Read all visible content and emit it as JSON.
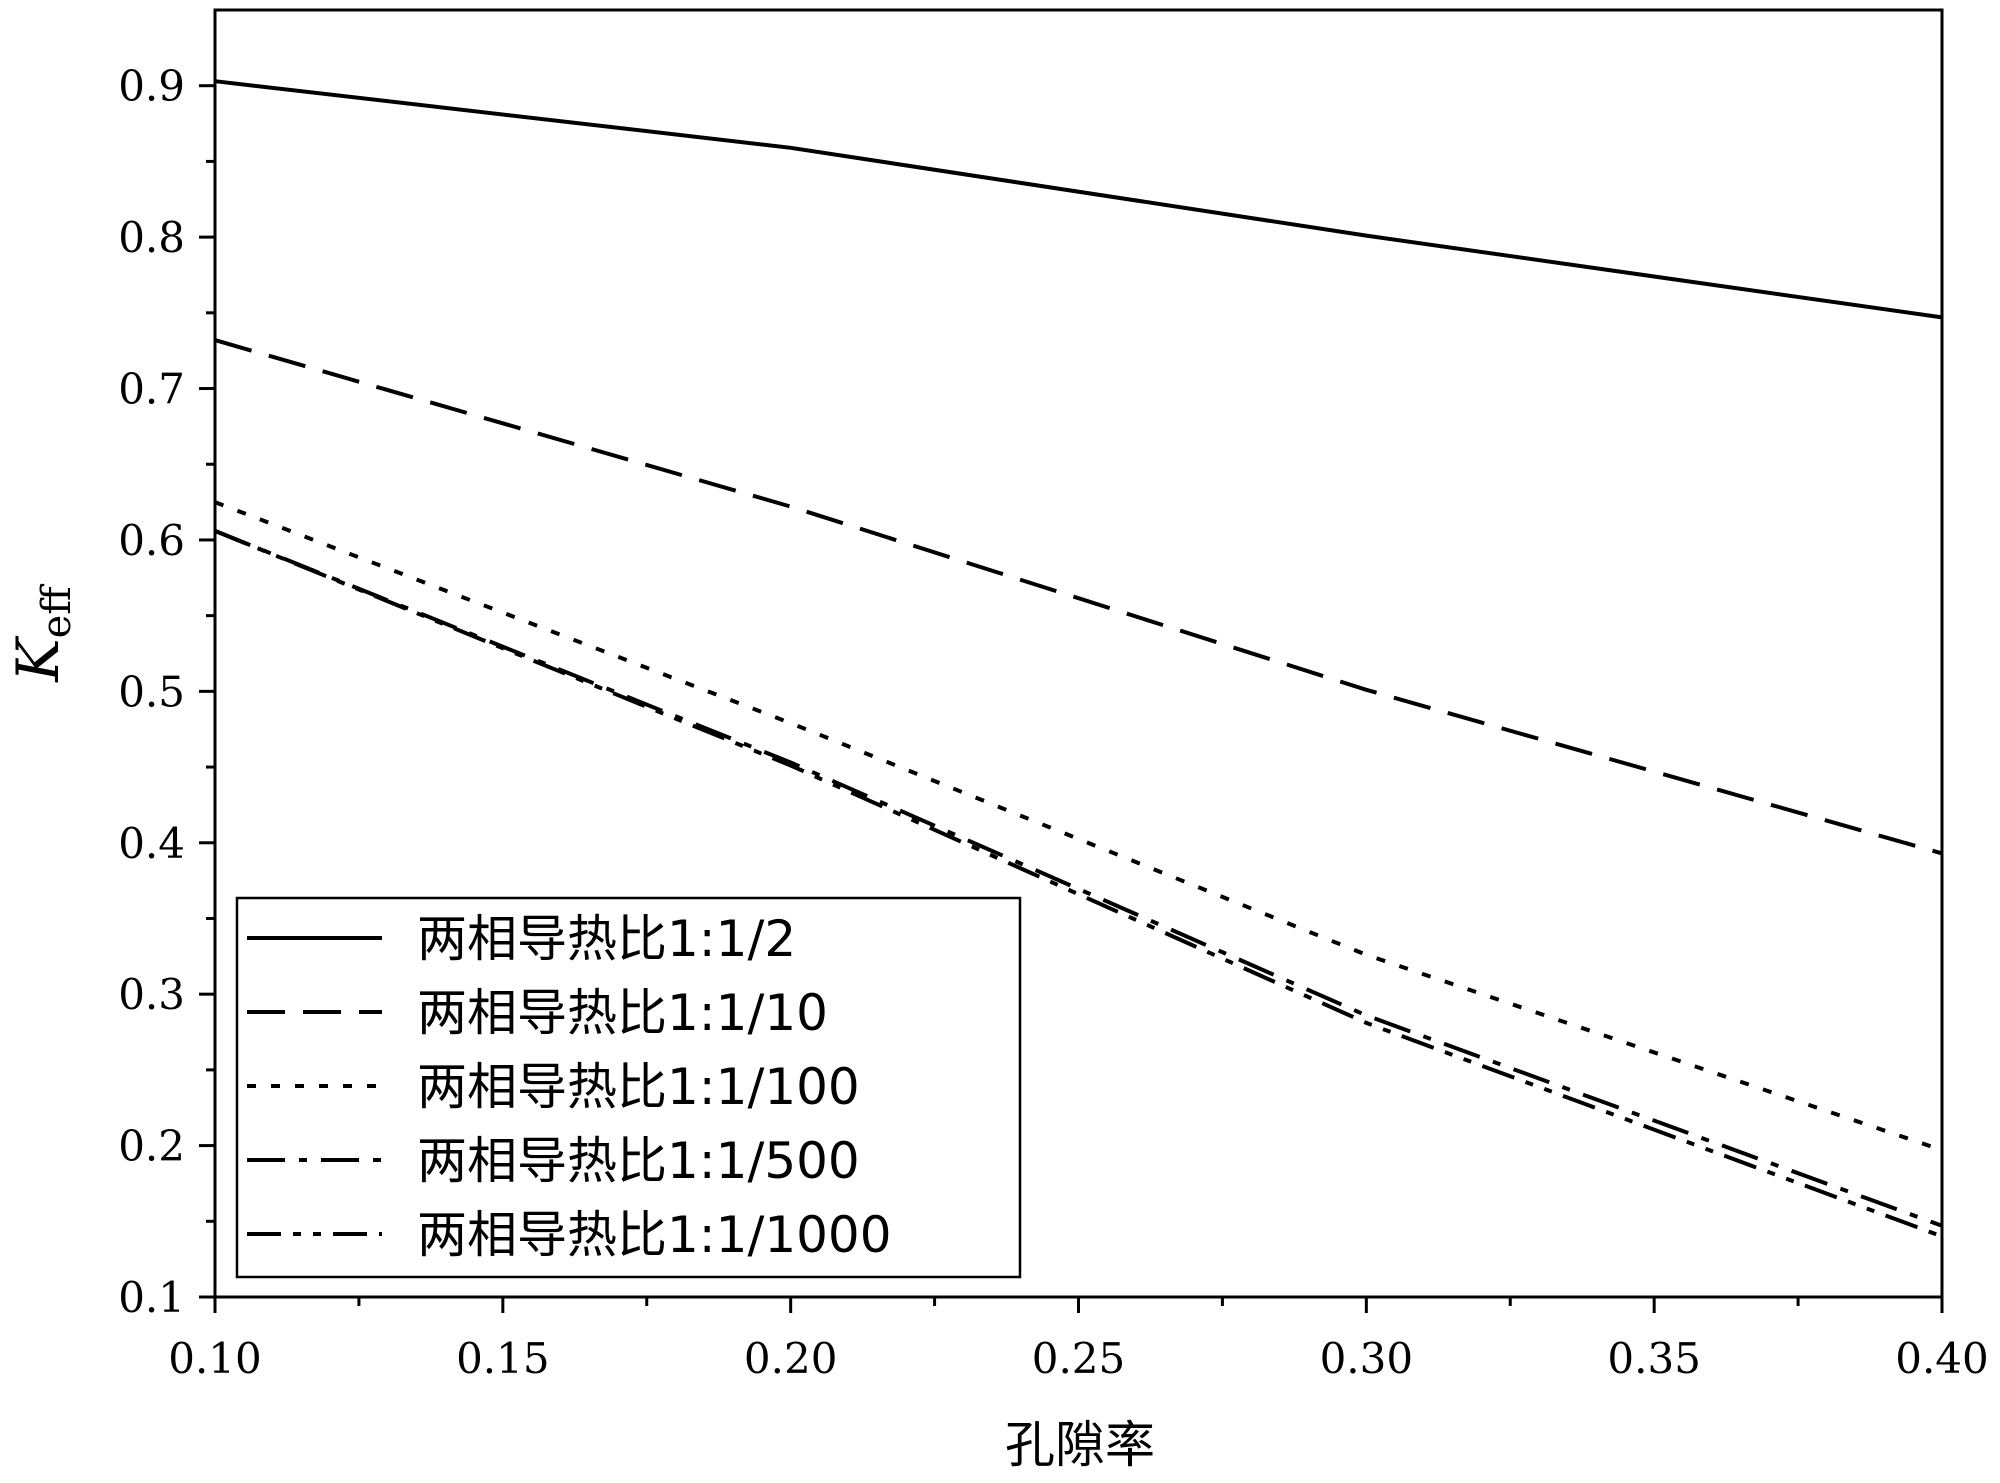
{
  "chart_data": {
    "type": "line",
    "title": "",
    "xlabel": "孔隙率",
    "ylabel": "K",
    "ylabel_subscript": "eff",
    "xlim": [
      0.1,
      0.4
    ],
    "ylim": [
      0.1,
      0.95
    ],
    "xticks": [
      0.1,
      0.15,
      0.2,
      0.25,
      0.3,
      0.35,
      0.4
    ],
    "xtick_labels": [
      "0.10",
      "0.15",
      "0.20",
      "0.25",
      "0.30",
      "0.35",
      "0.40"
    ],
    "yticks": [
      0.1,
      0.2,
      0.3,
      0.4,
      0.5,
      0.6,
      0.7,
      0.8,
      0.9
    ],
    "ytick_labels": [
      "0.1",
      "0.2",
      "0.3",
      "0.4",
      "0.5",
      "0.6",
      "0.7",
      "0.8",
      "0.9"
    ],
    "grid": false,
    "legend_position": "bottom-left",
    "x": [
      0.1,
      0.2,
      0.3,
      0.4
    ],
    "series": [
      {
        "name": "两相导热比1:1/2",
        "style": "solid",
        "values": [
          0.903,
          0.859,
          0.801,
          0.747
        ]
      },
      {
        "name": "两相导热比1:1/10",
        "style": "dash",
        "values": [
          0.732,
          0.622,
          0.501,
          0.393
        ]
      },
      {
        "name": "两相导热比1:1/100",
        "style": "dot",
        "values": [
          0.625,
          0.479,
          0.326,
          0.197
        ]
      },
      {
        "name": "两相导热比1:1/500",
        "style": "dashdot",
        "values": [
          0.606,
          0.453,
          0.286,
          0.147
        ]
      },
      {
        "name": "两相导热比1:1/1000",
        "style": "dashdotdot",
        "values": [
          0.606,
          0.451,
          0.281,
          0.14
        ]
      }
    ],
    "line_color": "#000000"
  }
}
